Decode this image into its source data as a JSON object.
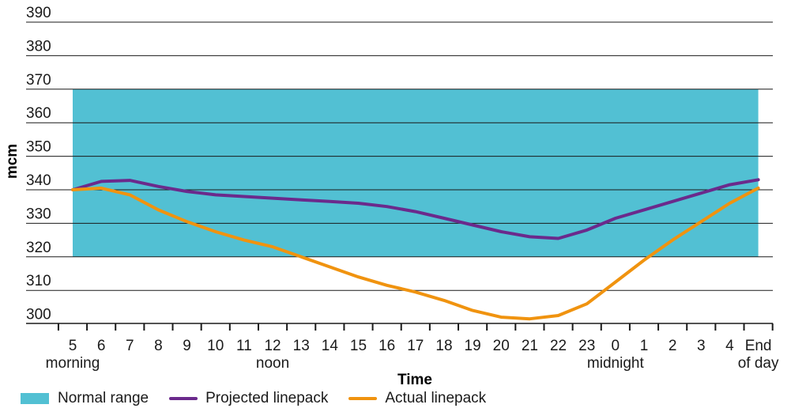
{
  "chart_data": {
    "type": "line",
    "ylabel": "mcm",
    "xlabel": "Time",
    "ylim": [
      297,
      392
    ],
    "yticks": [
      300,
      310,
      320,
      330,
      340,
      350,
      360,
      370,
      380,
      390
    ],
    "grid": true,
    "categories": [
      "5",
      "6",
      "7",
      "8",
      "9",
      "10",
      "11",
      "12",
      "13",
      "14",
      "15",
      "16",
      "17",
      "18",
      "19",
      "20",
      "21",
      "22",
      "23",
      "0",
      "1",
      "2",
      "3",
      "4",
      "End"
    ],
    "sub_labels": [
      {
        "category": "5",
        "text": "morning"
      },
      {
        "category": "12",
        "text": "noon"
      },
      {
        "category": "0",
        "text": "midnight"
      },
      {
        "category": "End",
        "text": "of day"
      }
    ],
    "normal_range": {
      "name": "Normal range",
      "from": 320,
      "to": 370,
      "color": "#52C0D3"
    },
    "series": [
      {
        "name": "Projected linepack",
        "color": "#6B2A8C",
        "values": [
          340,
          342.5,
          342.8,
          341,
          339.5,
          338.5,
          338,
          337.5,
          337,
          336.5,
          336,
          335,
          333.5,
          331.5,
          329.5,
          327.5,
          326,
          325.5,
          328,
          331.5,
          334,
          336.5,
          339,
          341.5,
          343
        ]
      },
      {
        "name": "Actual linepack",
        "color": "#F0930F",
        "values": [
          340,
          340.5,
          338.5,
          334,
          330.5,
          327.5,
          325,
          323,
          320,
          317,
          314,
          311.5,
          309.5,
          307,
          304,
          302,
          301.5,
          302.5,
          306,
          312.5,
          319,
          325,
          330.5,
          336,
          340.5
        ]
      }
    ],
    "legend_position": "bottom-left"
  }
}
